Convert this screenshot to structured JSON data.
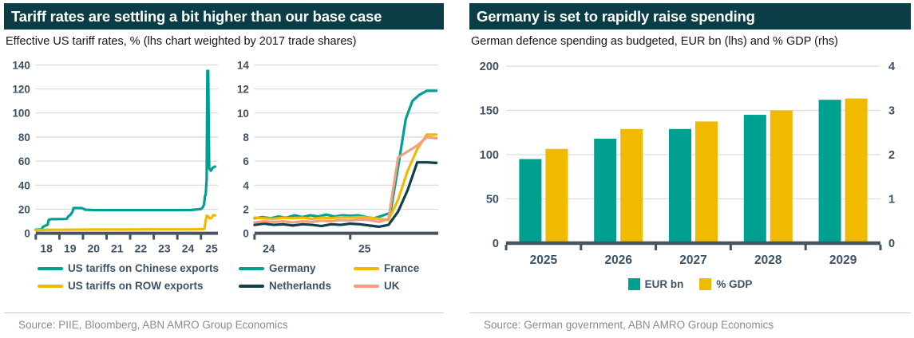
{
  "colors": {
    "teal": "#00a091",
    "yellow": "#f0ba00",
    "salmon": "#f59d82",
    "dark_teal": "#12404a",
    "header_bg": "#0a3d45",
    "axis": "#47545f",
    "tick_label": "#3d5266",
    "grid": "#dcdcdc",
    "source_text": "#8b8b8b",
    "separator": "#cccccc",
    "subtitle_text": "#161616"
  },
  "left_panel": {
    "title": "Tariff rates are settling a bit higher than our base case",
    "subtitle": "Effective US tariff rates, % (lhs chart weighted by 2017 trade shares)",
    "source": "Source: PIIE, Bloomberg, ABN AMRO Group Economics"
  },
  "right_panel": {
    "title": "Germany is set to rapidly raise spending",
    "subtitle": "German defence spending as budgeted, EUR bn (lhs)  and % GDP (rhs)",
    "source": "Source: German government, ABN AMRO Group Economics"
  },
  "chart_data": [
    {
      "id": "us-tariffs",
      "type": "line",
      "title": "Effective US tariff rates, % (weighted by 2017 trade shares)",
      "xlim": [
        18,
        25.72
      ],
      "ylim": [
        0,
        140
      ],
      "yticks": [
        0,
        20,
        40,
        60,
        80,
        100,
        120,
        140
      ],
      "xticks": [
        18,
        19,
        20,
        21,
        22,
        23,
        24,
        25
      ],
      "xlabel_offset": 0.45,
      "grid": true,
      "series": [
        {
          "name": "US tariffs on Chinese exports",
          "color_key": "teal",
          "points": [
            [
              18,
              3
            ],
            [
              18.15,
              3.2
            ],
            [
              18.25,
              3.3
            ],
            [
              18.3,
              5.3
            ],
            [
              18.45,
              6.8
            ],
            [
              18.5,
              7
            ],
            [
              18.55,
              11.3
            ],
            [
              18.7,
              11.8
            ],
            [
              19,
              11.8
            ],
            [
              19.3,
              11.9
            ],
            [
              19.4,
              14.5
            ],
            [
              19.45,
              15
            ],
            [
              19.55,
              17.8
            ],
            [
              19.6,
              21
            ],
            [
              19.95,
              21
            ],
            [
              20.1,
              19.6
            ],
            [
              20.5,
              19.3
            ],
            [
              21,
              19.3
            ],
            [
              22,
              19.3
            ],
            [
              23,
              19.3
            ],
            [
              24,
              19.3
            ],
            [
              24.6,
              19.4
            ],
            [
              25,
              20.2
            ],
            [
              25.08,
              21.5
            ],
            [
              25.13,
              24
            ],
            [
              25.17,
              31
            ],
            [
              25.2,
              32
            ],
            [
              25.24,
              45
            ],
            [
              25.27,
              135
            ],
            [
              25.29,
              127
            ],
            [
              25.31,
              135
            ],
            [
              25.35,
              54
            ],
            [
              25.42,
              52
            ],
            [
              25.5,
              54.5
            ],
            [
              25.6,
              55.5
            ]
          ]
        },
        {
          "name": "US tariffs on ROW exports",
          "color_key": "yellow",
          "points": [
            [
              18,
              2.6
            ],
            [
              18.5,
              2.9
            ],
            [
              19,
              3
            ],
            [
              20,
              3.1
            ],
            [
              21,
              3.2
            ],
            [
              22,
              3.2
            ],
            [
              23,
              3.3
            ],
            [
              24,
              3.3
            ],
            [
              24.8,
              3.4
            ],
            [
              25.05,
              3.5
            ],
            [
              25.15,
              3.6
            ],
            [
              25.2,
              10.5
            ],
            [
              25.24,
              14.5
            ],
            [
              25.3,
              14.3
            ],
            [
              25.35,
              12.6
            ],
            [
              25.45,
              12.6
            ],
            [
              25.52,
              15.2
            ],
            [
              25.6,
              14.8
            ]
          ]
        }
      ]
    },
    {
      "id": "eu-tariffs",
      "type": "line",
      "title": "Effective US tariff rates on European exports, %",
      "xlim": [
        24,
        25.92
      ],
      "ylim": [
        0,
        14
      ],
      "yticks": [
        0,
        2,
        4,
        6,
        8,
        10,
        12,
        14
      ],
      "xticks": [
        24,
        25
      ],
      "xlabel_offset": 0.15,
      "grid": true,
      "series": [
        {
          "name": "Germany",
          "color_key": "teal",
          "points": [
            [
              24,
              1.25
            ],
            [
              24.08,
              1.35
            ],
            [
              24.17,
              1.25
            ],
            [
              24.25,
              1.4
            ],
            [
              24.33,
              1.3
            ],
            [
              24.42,
              1.5
            ],
            [
              24.5,
              1.35
            ],
            [
              24.58,
              1.5
            ],
            [
              24.67,
              1.4
            ],
            [
              24.75,
              1.55
            ],
            [
              24.83,
              1.4
            ],
            [
              24.92,
              1.5
            ],
            [
              25,
              1.45
            ],
            [
              25.08,
              1.5
            ],
            [
              25.17,
              1.35
            ],
            [
              25.25,
              1.25
            ],
            [
              25.33,
              1.45
            ],
            [
              25.42,
              1.7
            ],
            [
              25.5,
              5.5
            ],
            [
              25.58,
              9.5
            ],
            [
              25.65,
              11
            ],
            [
              25.72,
              11.5
            ],
            [
              25.8,
              11.85
            ],
            [
              25.9,
              11.85
            ]
          ]
        },
        {
          "name": "Netherlands",
          "color_key": "dark_teal",
          "points": [
            [
              24,
              0.7
            ],
            [
              24.1,
              0.8
            ],
            [
              24.2,
              0.7
            ],
            [
              24.3,
              0.75
            ],
            [
              24.4,
              0.65
            ],
            [
              24.5,
              0.75
            ],
            [
              24.6,
              0.7
            ],
            [
              24.7,
              0.6
            ],
            [
              24.8,
              0.75
            ],
            [
              24.9,
              0.7
            ],
            [
              25,
              0.8
            ],
            [
              25.1,
              0.75
            ],
            [
              25.2,
              0.65
            ],
            [
              25.3,
              0.55
            ],
            [
              25.4,
              0.7
            ],
            [
              25.5,
              1.8
            ],
            [
              25.6,
              3.6
            ],
            [
              25.7,
              5.9
            ],
            [
              25.8,
              5.9
            ],
            [
              25.9,
              5.85
            ]
          ]
        },
        {
          "name": "France",
          "color_key": "yellow",
          "points": [
            [
              24,
              1.3
            ],
            [
              24.1,
              1.25
            ],
            [
              24.2,
              1.2
            ],
            [
              24.3,
              1.3
            ],
            [
              24.4,
              1.25
            ],
            [
              24.5,
              1.3
            ],
            [
              24.6,
              1.2
            ],
            [
              24.7,
              1.3
            ],
            [
              24.8,
              1.25
            ],
            [
              24.9,
              1.35
            ],
            [
              25,
              1.3
            ],
            [
              25.1,
              1.35
            ],
            [
              25.2,
              1.3
            ],
            [
              25.3,
              1.2
            ],
            [
              25.4,
              1.1
            ],
            [
              25.5,
              2.8
            ],
            [
              25.6,
              5.2
            ],
            [
              25.7,
              7
            ],
            [
              25.8,
              8.2
            ],
            [
              25.9,
              8.2
            ]
          ]
        },
        {
          "name": "UK",
          "color_key": "salmon",
          "points": [
            [
              24,
              0.9
            ],
            [
              24.1,
              1
            ],
            [
              24.2,
              0.95
            ],
            [
              24.3,
              1
            ],
            [
              24.4,
              0.9
            ],
            [
              24.5,
              1
            ],
            [
              24.6,
              0.95
            ],
            [
              24.7,
              1.05
            ],
            [
              24.8,
              1
            ],
            [
              24.9,
              1.1
            ],
            [
              25,
              1.05
            ],
            [
              25.1,
              1.15
            ],
            [
              25.2,
              1.1
            ],
            [
              25.3,
              0.95
            ],
            [
              25.4,
              1.2
            ],
            [
              25.5,
              6.3
            ],
            [
              25.6,
              6.8
            ],
            [
              25.7,
              7.3
            ],
            [
              25.8,
              8
            ],
            [
              25.9,
              7.9
            ]
          ]
        }
      ]
    },
    {
      "id": "german-defence",
      "type": "bar",
      "title": "German defence spending as budgeted",
      "categories": [
        "2025",
        "2026",
        "2027",
        "2028",
        "2029"
      ],
      "ylim_left": [
        0,
        200
      ],
      "yticks_left": [
        0,
        50,
        100,
        150,
        200
      ],
      "ylim_right": [
        0,
        4
      ],
      "yticks_right": [
        0,
        1,
        2,
        3,
        4
      ],
      "grid": true,
      "series": [
        {
          "name": "EUR bn",
          "axis": "left",
          "color_key": "teal",
          "values": [
            95,
            118,
            129,
            145,
            162
          ]
        },
        {
          "name": "% GDP",
          "axis": "right",
          "color_key": "yellow",
          "values": [
            2.13,
            2.58,
            2.75,
            3.0,
            3.27
          ]
        }
      ]
    }
  ]
}
